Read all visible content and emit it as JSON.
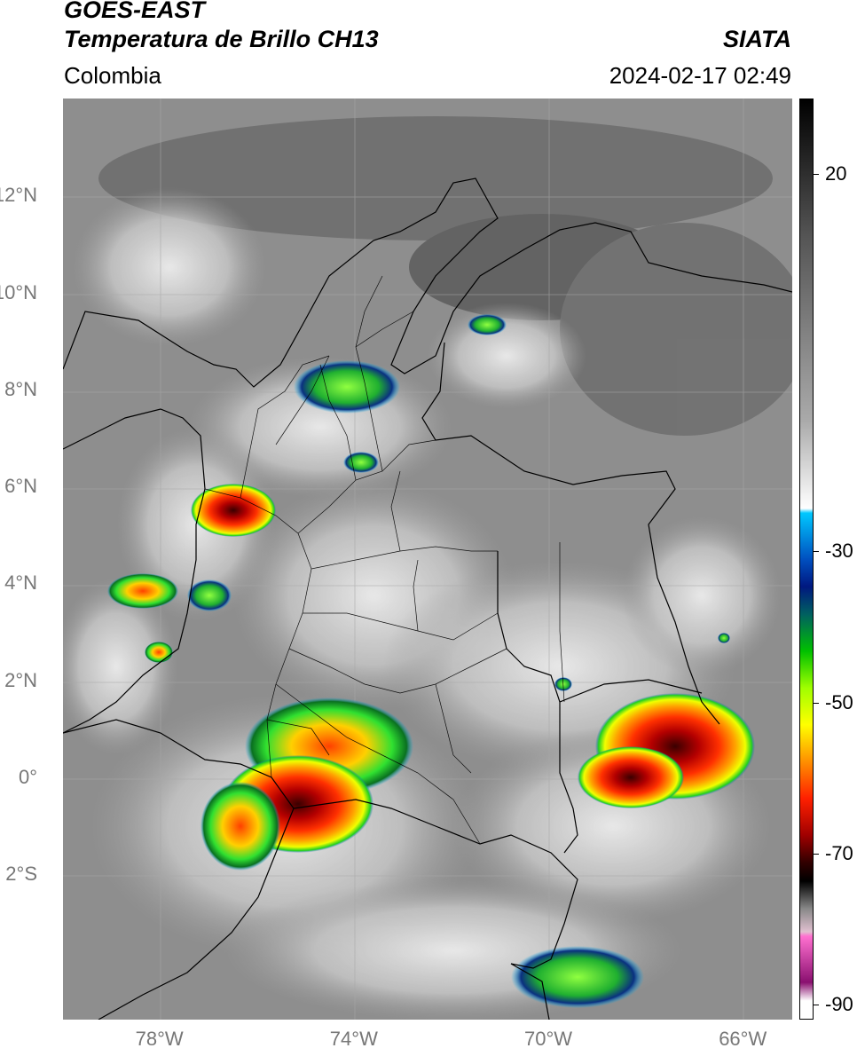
{
  "header": {
    "satellite": "GOES-EAST",
    "product": "Temperatura de Brillo CH13",
    "region": "Colombia",
    "agency": "SIATA",
    "datetime": "2024-02-17 02:49"
  },
  "map": {
    "lon_range": [
      -80,
      -65
    ],
    "lat_range": [
      -5,
      14
    ],
    "lat_ticks": [
      {
        "value": 12,
        "label": "12°N"
      },
      {
        "value": 10,
        "label": "10°N"
      },
      {
        "value": 8,
        "label": "8°N"
      },
      {
        "value": 6,
        "label": "6°N"
      },
      {
        "value": 4,
        "label": "4°N"
      },
      {
        "value": 2,
        "label": "2°N"
      },
      {
        "value": 0,
        "label": "0°"
      },
      {
        "value": -2,
        "label": "2°S"
      }
    ],
    "lon_ticks": [
      {
        "value": -78,
        "label": "78°W"
      },
      {
        "value": -74,
        "label": "74°W"
      },
      {
        "value": -70,
        "label": "70°W"
      },
      {
        "value": -66,
        "label": "66°W"
      }
    ]
  },
  "colorbar": {
    "range": [
      -92,
      30
    ],
    "ticks": [
      {
        "value": 20,
        "label": "20"
      },
      {
        "value": -30,
        "label": "-30"
      },
      {
        "value": -50,
        "label": "-50"
      },
      {
        "value": -70,
        "label": "-70"
      },
      {
        "value": -90,
        "label": "-90"
      }
    ]
  }
}
